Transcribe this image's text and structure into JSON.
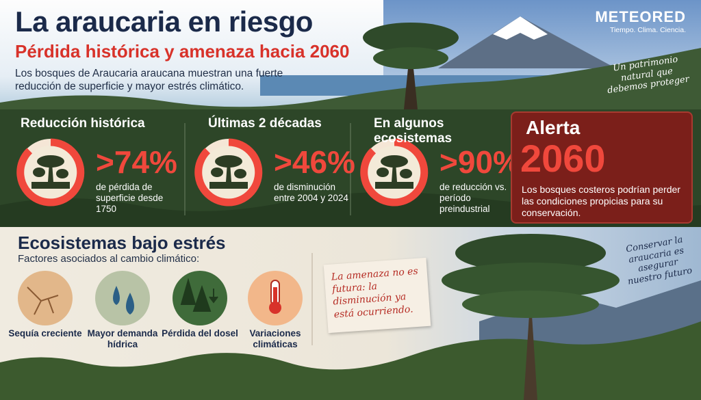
{
  "header": {
    "title": "La araucaria en riesgo",
    "subtitle": "Pérdida histórica y amenaza hacia 2060",
    "description": "Los bosques de Araucaria araucana muestran una fuerte reducción de superficie y mayor estrés climático."
  },
  "brand": {
    "name": "METEORED",
    "tagline": "Tiempo. Clima. Ciencia."
  },
  "note_top": "Un patrimonio natural que debemos proteger",
  "stats": [
    {
      "heading": "Reducción histórica",
      "value": ">74%",
      "text": "de pérdida de superficie desde 1750"
    },
    {
      "heading": "Últimas 2 décadas",
      "value": ">46%",
      "text": "de disminución entre 2004 y 2024"
    },
    {
      "heading": "En algunos ecosistemas",
      "value": ">90%",
      "text": "de reducción vs. período preindustrial"
    }
  ],
  "alert": {
    "label": "Alerta",
    "year": "2060",
    "text": "Los bosques costeros podrían perder las condiciones propicias para su conservación."
  },
  "stress": {
    "title": "Ecosistemas bajo estrés",
    "subtitle": "Factores asociados al cambio climático:",
    "factors": [
      {
        "label": "Sequía creciente"
      },
      {
        "label": "Mayor demanda hídrica"
      },
      {
        "label": "Pérdida del dosel"
      },
      {
        "label": "Variaciones climáticas"
      }
    ]
  },
  "quote": "La amenaza no es futura: la disminución ya está ocurriendo.",
  "note_bottom": "Conservar la araucaria es asegurar nuestro futuro"
}
